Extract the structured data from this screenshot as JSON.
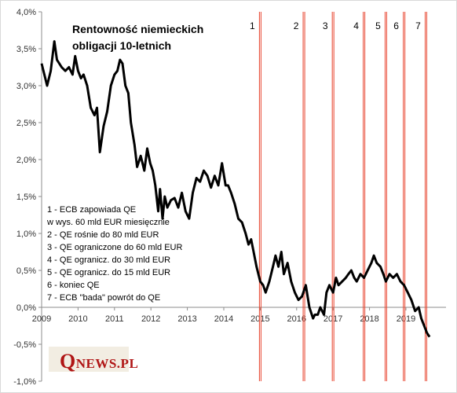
{
  "logo": {
    "initial": "Q",
    "rest": "NEWS.PL"
  },
  "chart_data": {
    "type": "line",
    "title": [
      "Rentowność niemieckich",
      "obligacji  10-letnich"
    ],
    "ylim": [
      -1.0,
      4.0
    ],
    "y_ticks": [
      {
        "v": 4.0,
        "label": "4,0%"
      },
      {
        "v": 3.5,
        "label": "3,5%"
      },
      {
        "v": 3.0,
        "label": "3,0%"
      },
      {
        "v": 2.5,
        "label": "2,5%"
      },
      {
        "v": 2.0,
        "label": "2,0%"
      },
      {
        "v": 1.5,
        "label": "1,5%"
      },
      {
        "v": 1.0,
        "label": "1,0%"
      },
      {
        "v": 0.5,
        "label": "0,5%"
      },
      {
        "v": 0.0,
        "label": "0,0%"
      },
      {
        "v": -0.5,
        "label": "-0,5%"
      },
      {
        "v": -1.0,
        "label": "-1,0%"
      }
    ],
    "xlim": [
      2009.0,
      2020.1
    ],
    "x_ticks": [
      "2009",
      "2010",
      "2011",
      "2012",
      "2013",
      "2014",
      "2015",
      "2016",
      "2017",
      "2018",
      "2019"
    ],
    "grid": false,
    "legend": [
      "1 - ECB zapowiada QE",
      "w wys. 60 mld EUR miesięcznie",
      "2 - QE rośnie do 80 mld EUR",
      "3 - QE ograniczone do 60 mld EUR",
      "4 - QE ogranicz. do 30 mld EUR",
      "5 - QE ogranicz. do 15 mld EUR",
      "6 - koniec QE",
      "7 - ECB \"bada\" powrót do QE"
    ],
    "event_color": "#e8432d",
    "series_color": "#000000",
    "events": [
      {
        "label": "1",
        "x": 2015.0
      },
      {
        "label": "2",
        "x": 2016.2
      },
      {
        "label": "3",
        "x": 2017.0
      },
      {
        "label": "4",
        "x": 2017.85
      },
      {
        "label": "5",
        "x": 2018.45
      },
      {
        "label": "6",
        "x": 2018.95
      },
      {
        "label": "7",
        "x": 2019.55
      }
    ],
    "series": [
      {
        "x": [
          2009.0,
          2009.15,
          2009.25,
          2009.35,
          2009.42,
          2009.55,
          2009.65,
          2009.75,
          2009.85,
          2009.92,
          2010.0,
          2010.08,
          2010.15,
          2010.25,
          2010.35,
          2010.45,
          2010.52,
          2010.6,
          2010.7,
          2010.8,
          2010.9,
          2011.0,
          2011.08,
          2011.15,
          2011.22,
          2011.3,
          2011.38,
          2011.45,
          2011.55,
          2011.62,
          2011.72,
          2011.82,
          2011.9,
          2011.98,
          2012.05,
          2012.12,
          2012.2,
          2012.25,
          2012.32,
          2012.38,
          2012.45,
          2012.55,
          2012.65,
          2012.75,
          2012.85,
          2012.95,
          2013.05,
          2013.15,
          2013.25,
          2013.35,
          2013.45,
          2013.55,
          2013.65,
          2013.75,
          2013.85,
          2013.95,
          2014.05,
          2014.12,
          2014.2,
          2014.3,
          2014.4,
          2014.5,
          2014.6,
          2014.68,
          2014.75,
          2014.82,
          2014.9,
          2015.0,
          2015.08,
          2015.15,
          2015.25,
          2015.35,
          2015.42,
          2015.5,
          2015.58,
          2015.65,
          2015.75,
          2015.85,
          2015.95,
          2016.05,
          2016.15,
          2016.25,
          2016.35,
          2016.45,
          2016.5,
          2016.58,
          2016.65,
          2016.75,
          2016.82,
          2016.9,
          2017.0,
          2017.08,
          2017.15,
          2017.25,
          2017.35,
          2017.42,
          2017.5,
          2017.58,
          2017.65,
          2017.75,
          2017.85,
          2017.95,
          2018.05,
          2018.12,
          2018.2,
          2018.3,
          2018.38,
          2018.45,
          2018.55,
          2018.65,
          2018.75,
          2018.85,
          2018.95,
          2019.05,
          2019.15,
          2019.25,
          2019.35,
          2019.42,
          2019.5,
          2019.58,
          2019.65
        ],
        "values": [
          3.3,
          3.0,
          3.2,
          3.6,
          3.35,
          3.25,
          3.2,
          3.25,
          3.15,
          3.4,
          3.2,
          3.1,
          3.15,
          3.0,
          2.7,
          2.6,
          2.7,
          2.1,
          2.45,
          2.65,
          3.0,
          3.15,
          3.2,
          3.35,
          3.3,
          3.0,
          2.9,
          2.5,
          2.2,
          1.9,
          2.05,
          1.85,
          2.15,
          1.95,
          1.85,
          1.65,
          1.3,
          1.6,
          1.2,
          1.5,
          1.35,
          1.45,
          1.48,
          1.35,
          1.55,
          1.3,
          1.2,
          1.55,
          1.75,
          1.7,
          1.85,
          1.78,
          1.62,
          1.78,
          1.65,
          1.95,
          1.65,
          1.65,
          1.55,
          1.4,
          1.2,
          1.15,
          1.0,
          0.85,
          0.92,
          0.75,
          0.55,
          0.35,
          0.3,
          0.2,
          0.35,
          0.55,
          0.7,
          0.55,
          0.75,
          0.45,
          0.6,
          0.35,
          0.2,
          0.1,
          0.15,
          0.3,
          0.0,
          -0.15,
          -0.1,
          -0.1,
          0.0,
          -0.1,
          0.2,
          0.3,
          0.2,
          0.4,
          0.3,
          0.35,
          0.4,
          0.45,
          0.5,
          0.4,
          0.35,
          0.45,
          0.4,
          0.5,
          0.6,
          0.7,
          0.6,
          0.55,
          0.45,
          0.35,
          0.45,
          0.4,
          0.45,
          0.35,
          0.3,
          0.2,
          0.1,
          -0.05,
          0.0,
          -0.15,
          -0.25,
          -0.35,
          -0.4
        ]
      }
    ]
  }
}
